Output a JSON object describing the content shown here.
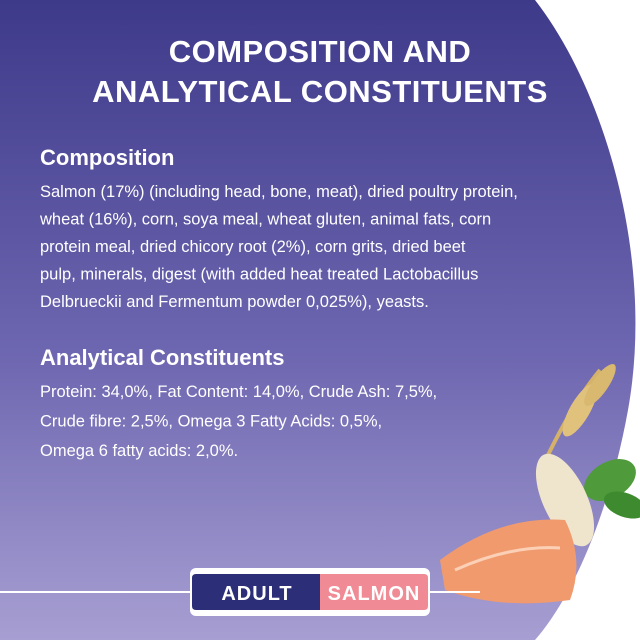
{
  "title_lines": [
    "COMPOSITION AND",
    "ANALYTICAL CONSTITUENTS"
  ],
  "composition": {
    "heading": "Composition",
    "lines": [
      "Salmon (17%) (including head, bone, meat), dried poultry protein,",
      "wheat (16%), corn, soya meal, wheat gluten, animal fats, corn",
      "protein meal, dried chicory root (2%), corn grits, dried beet",
      "pulp, minerals, digest (with added heat treated Lactobacillus",
      "Delbrueckii and Fermentum powder 0,025%), yeasts."
    ]
  },
  "analytical": {
    "heading": "Analytical Constituents",
    "lines": [
      "Protein: 34,0%, Fat Content: 14,0%, Crude Ash: 7,5%,",
      "Crude fibre: 2,5%, Omega 3 Fatty Acids: 0,5%,",
      "Omega 6 fatty acids: 2,0%."
    ]
  },
  "badges": [
    "ADULT",
    "SALMON"
  ]
}
